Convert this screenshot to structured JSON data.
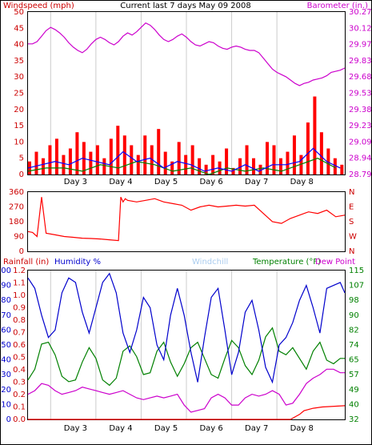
{
  "chart_data": [
    {
      "type": "line",
      "title": "Current last 7 days May 09 2008",
      "left_axis_label": "Windspeed (mph)",
      "right_axis_label": "Barometer (in.)",
      "x_tick_labels": [
        "Day 3",
        "Day 4",
        "Day 5",
        "Day 6",
        "Day 7",
        "Day 8"
      ],
      "left_ticks": [
        0,
        5,
        10,
        15,
        20,
        25,
        30,
        35,
        40,
        45,
        50
      ],
      "right_ticks": [
        "28.79",
        "28.94",
        "29.09",
        "29.23",
        "29.38",
        "29.53",
        "29.68",
        "29.83",
        "29.97",
        "30.12",
        "30.27"
      ],
      "ylim_left": [
        0,
        50
      ],
      "ylim_right": [
        28.79,
        30.27
      ],
      "grid": "vertical",
      "colors": {
        "windspeed": "#ff0000",
        "windspeed_avg": "#0000ff",
        "windspeed_green": "#008000",
        "barometer": "#cc00cc",
        "title": "#000000"
      },
      "series": [
        {
          "name": "Barometer (in.)",
          "x": [
            0,
            0.1,
            0.2,
            0.3,
            0.4,
            0.5,
            0.6,
            0.7,
            0.8,
            0.9,
            1.0,
            1.1,
            1.2,
            1.3,
            1.4,
            1.5,
            1.6,
            1.7,
            1.8,
            1.9,
            2.0,
            2.1,
            2.2,
            2.3,
            2.4,
            2.5,
            2.6,
            2.7,
            2.8,
            2.9,
            3.0,
            3.1,
            3.2,
            3.3,
            3.4,
            3.5,
            3.6,
            3.7,
            3.8,
            3.9,
            4.0,
            4.1,
            4.2,
            4.3,
            4.4,
            4.5,
            4.6,
            4.7,
            4.8,
            4.9,
            5.0,
            5.1,
            5.2,
            5.3,
            5.4,
            5.5,
            5.6,
            5.7,
            5.8,
            5.9,
            6.0,
            6.1,
            6.2,
            6.3,
            6.4,
            6.5,
            6.6,
            6.7,
            6.8,
            6.9,
            7.0
          ],
          "y": [
            29.98,
            29.98,
            30.0,
            30.05,
            30.1,
            30.13,
            30.11,
            30.08,
            30.04,
            29.99,
            29.95,
            29.92,
            29.9,
            29.93,
            29.98,
            30.02,
            30.04,
            30.02,
            29.99,
            29.97,
            30.0,
            30.05,
            30.08,
            30.06,
            30.09,
            30.13,
            30.17,
            30.15,
            30.11,
            30.06,
            30.02,
            30.0,
            30.02,
            30.05,
            30.07,
            30.04,
            30.0,
            29.97,
            29.96,
            29.98,
            30.0,
            29.99,
            29.96,
            29.94,
            29.93,
            29.95,
            29.96,
            29.95,
            29.93,
            29.92,
            29.92,
            29.9,
            29.85,
            29.8,
            29.75,
            29.72,
            29.7,
            29.68,
            29.65,
            29.62,
            29.6,
            29.62,
            29.63,
            29.65,
            29.66,
            29.67,
            29.69,
            29.72,
            29.73,
            29.74,
            29.76
          ]
        },
        {
          "name": "Windspeed (mph)",
          "x": [
            0,
            0.15,
            0.3,
            0.45,
            0.6,
            0.75,
            0.9,
            1.05,
            1.2,
            1.35,
            1.5,
            1.65,
            1.8,
            1.95,
            2.1,
            2.25,
            2.4,
            2.55,
            2.7,
            2.85,
            3.0,
            3.15,
            3.3,
            3.45,
            3.6,
            3.75,
            3.9,
            4.05,
            4.2,
            4.35,
            4.5,
            4.65,
            4.8,
            4.95,
            5.1,
            5.25,
            5.4,
            5.55,
            5.7,
            5.85,
            6.0,
            6.15,
            6.3,
            6.45,
            6.6,
            6.75,
            6.9
          ],
          "y": [
            4,
            7,
            5,
            9,
            11,
            6,
            8,
            13,
            10,
            7,
            9,
            5,
            11,
            15,
            12,
            9,
            6,
            12,
            9,
            14,
            7,
            4,
            10,
            6,
            9,
            5,
            3,
            6,
            4,
            8,
            2,
            5,
            9,
            5,
            3,
            10,
            9,
            5,
            7,
            12,
            6,
            16,
            24,
            13,
            8,
            5,
            3
          ]
        },
        {
          "name": "Windspeed average",
          "x": [
            0,
            0.3,
            0.6,
            0.9,
            1.2,
            1.5,
            1.8,
            2.1,
            2.4,
            2.7,
            3.0,
            3.3,
            3.6,
            3.9,
            4.2,
            4.5,
            4.8,
            5.1,
            5.4,
            5.7,
            6.0,
            6.3,
            6.6,
            6.9
          ],
          "y": [
            2,
            3,
            4,
            3,
            5,
            4,
            3,
            7,
            4,
            5,
            2,
            4,
            3,
            1,
            2,
            1,
            3,
            1,
            3,
            3,
            4,
            8,
            4,
            2
          ]
        },
        {
          "name": "Windspeed green",
          "x": [
            0,
            0.4,
            0.8,
            1.2,
            1.6,
            2.0,
            2.4,
            2.8,
            3.2,
            3.6,
            4.0,
            4.4,
            4.8,
            5.2,
            5.6,
            6.0,
            6.4,
            6.8
          ],
          "y": [
            1,
            2,
            2,
            1,
            3,
            2,
            4,
            3,
            1,
            2,
            0,
            2,
            1,
            2,
            1,
            3,
            5,
            2
          ]
        }
      ]
    },
    {
      "type": "line",
      "left_ticks": [
        0,
        90,
        180,
        270,
        360
      ],
      "right_ticks": [
        "N",
        "W",
        "S",
        "E",
        "N"
      ],
      "ylim": [
        0,
        360
      ],
      "colors": {
        "direction": "#ff0000"
      },
      "series": [
        {
          "name": "Wind direction",
          "x": [
            0,
            0.1,
            0.2,
            0.3,
            0.4,
            0.6,
            0.8,
            1.0,
            1.2,
            1.4,
            1.6,
            1.8,
            2.0,
            2.05,
            2.1,
            2.15,
            2.2,
            2.4,
            2.6,
            2.8,
            3.0,
            3.2,
            3.4,
            3.6,
            3.8,
            4.0,
            4.2,
            4.4,
            4.6,
            4.8,
            5.0,
            5.2,
            5.4,
            5.6,
            5.8,
            6.0,
            6.2,
            6.4,
            6.6,
            6.8,
            7.0
          ],
          "y": [
            120,
            115,
            90,
            330,
            110,
            100,
            90,
            85,
            80,
            78,
            75,
            70,
            65,
            330,
            300,
            320,
            310,
            300,
            310,
            320,
            300,
            290,
            280,
            250,
            270,
            280,
            270,
            275,
            280,
            275,
            280,
            230,
            180,
            170,
            200,
            220,
            240,
            230,
            250,
            210,
            220
          ]
        }
      ]
    },
    {
      "type": "line",
      "labels": [
        "Rainfall (in)",
        "Humidity %",
        "Windchill",
        "Temperature (°F)",
        "Dew Point"
      ],
      "x_tick_labels": [
        "Day 3",
        "Day 4",
        "Day 5",
        "Day 6",
        "Day 7",
        "Day 8"
      ],
      "humidity_ticks": [
        0,
        10,
        20,
        30,
        40,
        50,
        60,
        70,
        80,
        90,
        100
      ],
      "rain_ticks": [
        "0.0",
        "0.1",
        "0.2",
        "0.3",
        "0.4",
        "0.5",
        "0.6",
        "0.7",
        "0.8",
        "0.9",
        "1.0",
        "1.1",
        "1.2"
      ],
      "temp_ticks": [
        32,
        40,
        49,
        57,
        65,
        74,
        82,
        90,
        98,
        107,
        115
      ],
      "ylim_humidity": [
        0,
        100
      ],
      "ylim_rain": [
        0,
        1.2
      ],
      "ylim_temp": [
        32,
        115
      ],
      "colors": {
        "rain": "#ff0000",
        "humidity": "#0000cc",
        "windchill": "#aaccee",
        "temperature": "#008000",
        "dewpoint": "#cc00cc"
      },
      "series": [
        {
          "name": "Humidity %",
          "x": [
            0,
            0.15,
            0.3,
            0.45,
            0.6,
            0.75,
            0.9,
            1.05,
            1.2,
            1.35,
            1.5,
            1.65,
            1.8,
            1.95,
            2.1,
            2.25,
            2.4,
            2.55,
            2.7,
            2.85,
            3.0,
            3.15,
            3.3,
            3.45,
            3.6,
            3.75,
            3.9,
            4.05,
            4.2,
            4.35,
            4.5,
            4.65,
            4.8,
            4.95,
            5.1,
            5.25,
            5.4,
            5.55,
            5.7,
            5.85,
            6.0,
            6.15,
            6.3,
            6.45,
            6.6,
            6.75,
            6.9,
            7.0
          ],
          "y": [
            95,
            88,
            70,
            55,
            60,
            85,
            95,
            92,
            72,
            58,
            75,
            92,
            98,
            85,
            58,
            45,
            60,
            82,
            75,
            50,
            40,
            70,
            88,
            70,
            45,
            25,
            55,
            82,
            88,
            60,
            30,
            45,
            72,
            80,
            60,
            35,
            25,
            50,
            55,
            65,
            80,
            90,
            75,
            58,
            88,
            90,
            92,
            85
          ]
        },
        {
          "name": "Temperature (°F)",
          "x": [
            0,
            0.15,
            0.3,
            0.45,
            0.6,
            0.75,
            0.9,
            1.05,
            1.2,
            1.35,
            1.5,
            1.65,
            1.8,
            1.95,
            2.1,
            2.25,
            2.4,
            2.55,
            2.7,
            2.85,
            3.0,
            3.15,
            3.3,
            3.45,
            3.6,
            3.75,
            3.9,
            4.05,
            4.2,
            4.35,
            4.5,
            4.65,
            4.8,
            4.95,
            5.1,
            5.25,
            5.4,
            5.55,
            5.7,
            5.85,
            6.0,
            6.15,
            6.3,
            6.45,
            6.6,
            6.75,
            6.9,
            7.0
          ],
          "y": [
            54,
            60,
            74,
            75,
            68,
            56,
            53,
            54,
            64,
            72,
            66,
            54,
            51,
            55,
            70,
            73,
            67,
            57,
            58,
            70,
            75,
            64,
            56,
            63,
            72,
            75,
            66,
            57,
            55,
            66,
            76,
            72,
            62,
            57,
            65,
            78,
            83,
            70,
            68,
            72,
            66,
            60,
            70,
            75,
            65,
            63,
            66,
            66
          ]
        },
        {
          "name": "Dew Point",
          "x": [
            0,
            0.15,
            0.3,
            0.45,
            0.6,
            0.75,
            0.9,
            1.05,
            1.2,
            1.35,
            1.5,
            1.65,
            1.8,
            1.95,
            2.1,
            2.25,
            2.4,
            2.55,
            2.7,
            2.85,
            3.0,
            3.15,
            3.3,
            3.45,
            3.6,
            3.75,
            3.9,
            4.05,
            4.2,
            4.35,
            4.5,
            4.65,
            4.8,
            4.95,
            5.1,
            5.25,
            5.4,
            5.55,
            5.7,
            5.85,
            6.0,
            6.15,
            6.3,
            6.45,
            6.6,
            6.75,
            6.9,
            7.0
          ],
          "y": [
            46,
            48,
            52,
            51,
            48,
            46,
            47,
            48,
            50,
            49,
            48,
            47,
            46,
            47,
            48,
            46,
            44,
            43,
            44,
            45,
            44,
            45,
            46,
            40,
            36,
            37,
            38,
            44,
            46,
            44,
            40,
            40,
            44,
            46,
            45,
            46,
            48,
            46,
            40,
            41,
            46,
            52,
            55,
            57,
            60,
            60,
            58,
            58
          ]
        },
        {
          "name": "Rainfall (in)",
          "x": [
            0,
            1,
            2,
            3,
            4,
            5,
            5.8,
            6.0,
            6.1,
            6.3,
            6.5,
            7.0
          ],
          "y": [
            0,
            0,
            0,
            0,
            0,
            0,
            0.0,
            0.04,
            0.07,
            0.09,
            0.1,
            0.11
          ]
        }
      ]
    }
  ]
}
